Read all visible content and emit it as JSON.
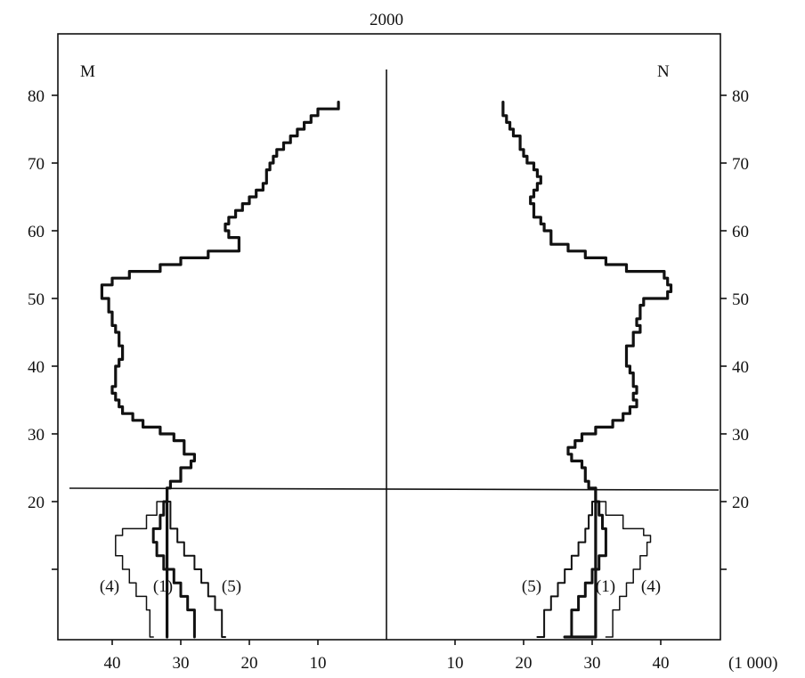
{
  "chart_data": {
    "type": "line",
    "title": "2000",
    "unit_label": "(1 000)",
    "panels": {
      "left": "M",
      "right": "N"
    },
    "x_ticks_left": [
      40,
      30,
      20,
      10
    ],
    "x_ticks_right": [
      10,
      20,
      30,
      40
    ],
    "y_ticks": [
      20,
      30,
      40,
      50,
      60,
      70,
      80
    ],
    "y_ticks_unlabeled": [
      10
    ],
    "xlim": [
      0,
      49
    ],
    "ylim": [
      0,
      86
    ],
    "reference_age": 22,
    "series_labels": {
      "s1": "(1)",
      "s4": "(4)",
      "s5": "(5)"
    },
    "series": [
      {
        "id": "main",
        "male": [
          [
            0,
            32
          ],
          [
            22,
            32
          ],
          [
            23,
            31.5
          ],
          [
            25,
            30
          ],
          [
            26,
            28.5
          ],
          [
            27,
            28
          ],
          [
            29,
            29.5
          ],
          [
            30,
            31
          ],
          [
            31,
            33
          ],
          [
            32,
            35.5
          ],
          [
            33,
            37
          ],
          [
            34,
            38.5
          ],
          [
            35,
            39
          ],
          [
            36,
            39.5
          ],
          [
            37,
            40
          ],
          [
            38,
            39.5
          ],
          [
            39,
            39.5
          ],
          [
            40,
            39.5
          ],
          [
            41,
            39
          ],
          [
            42,
            38.5
          ],
          [
            43,
            38.5
          ],
          [
            44,
            39
          ],
          [
            45,
            39
          ],
          [
            46,
            39.5
          ],
          [
            47,
            40
          ],
          [
            48,
            40
          ],
          [
            49,
            40.5
          ],
          [
            50,
            40.5
          ],
          [
            51,
            41.5
          ],
          [
            52,
            41.5
          ],
          [
            53,
            40
          ],
          [
            54,
            37.5
          ],
          [
            55,
            33
          ],
          [
            56,
            30
          ],
          [
            57,
            26
          ],
          [
            58,
            21.5
          ],
          [
            59,
            21.5
          ],
          [
            60,
            23
          ],
          [
            61,
            23.5
          ],
          [
            62,
            23
          ],
          [
            63,
            22
          ],
          [
            64,
            21
          ],
          [
            65,
            20
          ],
          [
            66,
            19
          ],
          [
            67,
            18
          ],
          [
            68,
            17.5
          ],
          [
            69,
            17.5
          ],
          [
            70,
            17
          ],
          [
            71,
            16.5
          ],
          [
            72,
            16
          ],
          [
            73,
            15
          ],
          [
            74,
            14
          ],
          [
            75,
            13
          ],
          [
            76,
            12
          ],
          [
            77,
            11
          ],
          [
            78,
            10
          ],
          [
            79,
            7
          ]
        ],
        "female": [
          [
            0,
            26
          ],
          [
            22,
            30.5
          ],
          [
            23,
            29.5
          ],
          [
            25,
            29
          ],
          [
            26,
            28.5
          ],
          [
            27,
            27
          ],
          [
            28,
            26.5
          ],
          [
            29,
            27.5
          ],
          [
            30,
            28.5
          ],
          [
            31,
            30.5
          ],
          [
            32,
            33
          ],
          [
            33,
            34.5
          ],
          [
            34,
            35.5
          ],
          [
            35,
            36.5
          ],
          [
            36,
            36
          ],
          [
            37,
            36.5
          ],
          [
            38,
            36
          ],
          [
            39,
            36
          ],
          [
            40,
            35.5
          ],
          [
            41,
            35
          ],
          [
            42,
            35
          ],
          [
            43,
            35
          ],
          [
            44,
            36
          ],
          [
            45,
            36
          ],
          [
            46,
            37
          ],
          [
            47,
            36.5
          ],
          [
            48,
            37
          ],
          [
            49,
            37
          ],
          [
            50,
            37.5
          ],
          [
            51,
            41
          ],
          [
            52,
            41.5
          ],
          [
            53,
            41
          ],
          [
            54,
            40.5
          ],
          [
            55,
            35
          ],
          [
            56,
            32
          ],
          [
            57,
            29
          ],
          [
            58,
            26.5
          ],
          [
            59,
            24
          ],
          [
            60,
            24
          ],
          [
            61,
            23
          ],
          [
            62,
            22.5
          ],
          [
            63,
            21.5
          ],
          [
            64,
            21.5
          ],
          [
            65,
            21
          ],
          [
            66,
            21.5
          ],
          [
            67,
            22
          ],
          [
            68,
            22.5
          ],
          [
            69,
            22
          ],
          [
            70,
            21.5
          ],
          [
            71,
            20.5
          ],
          [
            72,
            20
          ],
          [
            73,
            19.5
          ],
          [
            74,
            19.5
          ],
          [
            75,
            18.5
          ],
          [
            76,
            18
          ],
          [
            77,
            17.5
          ],
          [
            78,
            17
          ],
          [
            79,
            17
          ]
        ]
      },
      {
        "id": "s1",
        "male": [
          [
            0,
            28
          ],
          [
            4,
            28
          ],
          [
            6,
            29
          ],
          [
            8,
            30
          ],
          [
            10,
            31
          ],
          [
            12,
            32.5
          ],
          [
            14,
            33.5
          ],
          [
            16,
            34
          ],
          [
            18,
            33
          ],
          [
            20,
            32.5
          ],
          [
            22,
            32
          ]
        ],
        "female": [
          [
            0,
            26
          ],
          [
            4,
            27
          ],
          [
            6,
            28
          ],
          [
            8,
            29
          ],
          [
            10,
            30
          ],
          [
            12,
            31
          ],
          [
            14,
            32
          ],
          [
            16,
            32
          ],
          [
            18,
            31.5
          ],
          [
            20,
            31
          ],
          [
            22,
            30.5
          ]
        ]
      },
      {
        "id": "s4",
        "male": [
          [
            0,
            34
          ],
          [
            4,
            34.5
          ],
          [
            6,
            35
          ],
          [
            8,
            36.5
          ],
          [
            10,
            37.5
          ],
          [
            12,
            38.5
          ],
          [
            14,
            39.5
          ],
          [
            15,
            39.5
          ],
          [
            16,
            38.5
          ],
          [
            18,
            35
          ],
          [
            20,
            33.5
          ],
          [
            22,
            32
          ]
        ],
        "female": [
          [
            0,
            32
          ],
          [
            4,
            33
          ],
          [
            6,
            34
          ],
          [
            8,
            35
          ],
          [
            10,
            36
          ],
          [
            12,
            37
          ],
          [
            14,
            38
          ],
          [
            15,
            38.5
          ],
          [
            16,
            37.5
          ],
          [
            18,
            34.5
          ],
          [
            20,
            32
          ],
          [
            22,
            30.5
          ]
        ]
      },
      {
        "id": "s5",
        "male": [
          [
            0,
            23.5
          ],
          [
            4,
            24
          ],
          [
            6,
            25
          ],
          [
            8,
            26
          ],
          [
            10,
            27
          ],
          [
            12,
            28
          ],
          [
            14,
            29.5
          ],
          [
            16,
            30.5
          ],
          [
            18,
            31.5
          ],
          [
            20,
            31.5
          ],
          [
            22,
            32
          ]
        ],
        "female": [
          [
            0,
            22
          ],
          [
            4,
            23
          ],
          [
            6,
            24
          ],
          [
            8,
            25
          ],
          [
            10,
            26
          ],
          [
            12,
            27
          ],
          [
            14,
            28
          ],
          [
            16,
            29
          ],
          [
            18,
            29.5
          ],
          [
            20,
            30
          ],
          [
            22,
            30.5
          ]
        ]
      }
    ]
  }
}
